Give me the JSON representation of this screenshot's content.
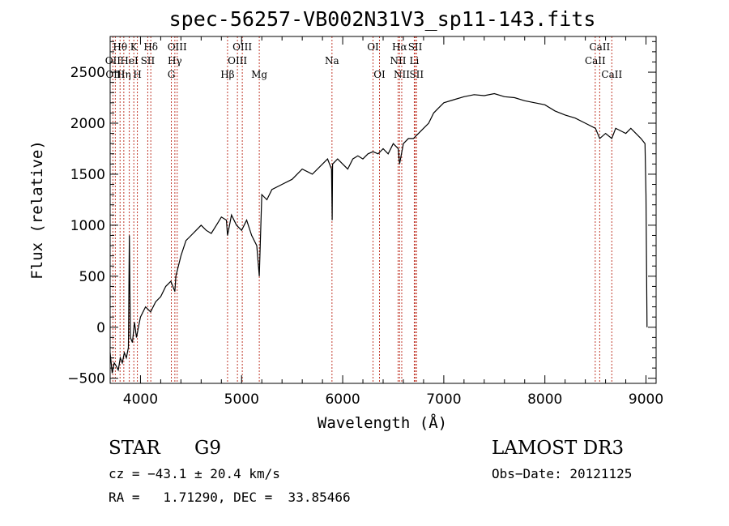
{
  "chart_data": {
    "type": "line",
    "title": "spec-56257-VB002N31V3_sp11-143.fits",
    "xlabel": "Wavelength (Å)",
    "ylabel": "Flux (relative)",
    "xlim": [
      3700,
      9100
    ],
    "ylim": [
      -550,
      2850
    ],
    "xticks": [
      4000,
      5000,
      6000,
      7000,
      8000,
      9000
    ],
    "yticks": [
      -500,
      0,
      500,
      1000,
      1500,
      2000,
      2500
    ],
    "series": [
      {
        "name": "spectrum",
        "x": [
          3700,
          3720,
          3740,
          3760,
          3780,
          3800,
          3820,
          3840,
          3860,
          3880,
          3890,
          3900,
          3920,
          3940,
          3960,
          3980,
          4000,
          4050,
          4100,
          4150,
          4200,
          4250,
          4300,
          4340,
          4350,
          4400,
          4450,
          4500,
          4550,
          4600,
          4650,
          4700,
          4750,
          4800,
          4850,
          4861,
          4900,
          4950,
          5000,
          5050,
          5100,
          5150,
          5175,
          5200,
          5250,
          5300,
          5400,
          5500,
          5600,
          5700,
          5800,
          5850,
          5890,
          5896,
          5900,
          5950,
          6000,
          6050,
          6100,
          6150,
          6200,
          6250,
          6300,
          6350,
          6400,
          6450,
          6500,
          6550,
          6563,
          6600,
          6650,
          6700,
          6750,
          6800,
          6850,
          6900,
          6950,
          7000,
          7100,
          7200,
          7300,
          7400,
          7500,
          7600,
          7700,
          7800,
          7900,
          8000,
          8100,
          8200,
          8300,
          8400,
          8500,
          8542,
          8600,
          8662,
          8700,
          8800,
          8850,
          8900,
          8950,
          8990,
          9000,
          9010
        ],
        "values": [
          -250,
          -450,
          -350,
          -380,
          -420,
          -300,
          -350,
          -250,
          -300,
          -200,
          900,
          -100,
          -150,
          50,
          -100,
          0,
          100,
          200,
          150,
          250,
          300,
          400,
          450,
          350,
          500,
          700,
          850,
          900,
          950,
          1000,
          950,
          920,
          1000,
          1080,
          1050,
          900,
          1100,
          1000,
          950,
          1050,
          900,
          800,
          500,
          1300,
          1250,
          1350,
          1400,
          1450,
          1550,
          1500,
          1600,
          1650,
          1550,
          1050,
          1600,
          1650,
          1600,
          1550,
          1650,
          1680,
          1650,
          1700,
          1720,
          1700,
          1750,
          1700,
          1800,
          1750,
          1600,
          1800,
          1850,
          1850,
          1900,
          1950,
          2000,
          2100,
          2150,
          2200,
          2230,
          2260,
          2280,
          2270,
          2290,
          2260,
          2250,
          2220,
          2200,
          2180,
          2120,
          2080,
          2050,
          2000,
          1950,
          1850,
          1900,
          1850,
          1950,
          1900,
          1950,
          1900,
          1850,
          1800,
          1300,
          0
        ]
      }
    ],
    "line_markers": [
      {
        "name": "Hθ",
        "wl": 3798,
        "row": 1
      },
      {
        "name": "OII",
        "wl": 3727,
        "row": 2
      },
      {
        "name": "OIII",
        "wl": 3751,
        "row": 3
      },
      {
        "name": "K",
        "wl": 3934,
        "row": 1
      },
      {
        "name": "H",
        "wl": 3969,
        "row": 3
      },
      {
        "name": "HeI",
        "wl": 3889,
        "row": 2
      },
      {
        "name": "Hη",
        "wl": 3835,
        "row": 3
      },
      {
        "name": "Hδ",
        "wl": 4102,
        "row": 1
      },
      {
        "name": "SII",
        "wl": 4072,
        "row": 2
      },
      {
        "name": "OIII",
        "wl": 4363,
        "row": 1
      },
      {
        "name": "Hγ",
        "wl": 4340,
        "row": 2
      },
      {
        "name": "G",
        "wl": 4305,
        "row": 3
      },
      {
        "name": "Hβ",
        "wl": 4861,
        "row": 3
      },
      {
        "name": "OIII",
        "wl": 5007,
        "row": 1
      },
      {
        "name": "OIII",
        "wl": 4959,
        "row": 2
      },
      {
        "name": "Mg",
        "wl": 5175,
        "row": 3
      },
      {
        "name": "Na",
        "wl": 5894,
        "row": 2
      },
      {
        "name": "OI",
        "wl": 6300,
        "row": 1
      },
      {
        "name": "OI",
        "wl": 6364,
        "row": 3
      },
      {
        "name": "Hα",
        "wl": 6563,
        "row": 1
      },
      {
        "name": "NII",
        "wl": 6548,
        "row": 2
      },
      {
        "name": "NII",
        "wl": 6584,
        "row": 3
      },
      {
        "name": "SII",
        "wl": 6717,
        "row": 1
      },
      {
        "name": "Li",
        "wl": 6708,
        "row": 2
      },
      {
        "name": "SII",
        "wl": 6731,
        "row": 3
      },
      {
        "name": "CaII",
        "wl": 8542,
        "row": 1
      },
      {
        "name": "CaII",
        "wl": 8498,
        "row": 2
      },
      {
        "name": "CaII",
        "wl": 8662,
        "row": 3
      }
    ]
  },
  "info": {
    "object_class": "STAR",
    "subclass": "G9",
    "survey": "LAMOST DR3",
    "cz": "cz = −43.1 ± 20.4 km/s",
    "obs_date": "Obs−Date: 20121125",
    "radec": "RA =   1.71290, DEC =  33.85466"
  }
}
